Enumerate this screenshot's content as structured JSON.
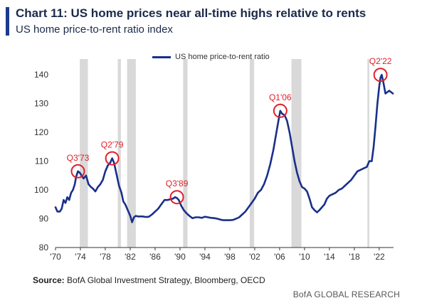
{
  "header": {
    "title": "Chart 11: US home prices near all-time highs relative to rents",
    "subtitle": "US home price-to-rent ratio index"
  },
  "footer": {
    "source_label": "Source:",
    "source_text": "BofA Global Investment Strategy, Bloomberg, OECD",
    "credit": "BofA GLOBAL RESEARCH"
  },
  "colors": {
    "line": "#1a2f8a",
    "recession": "#d9d9d9",
    "marker": "#e0202a",
    "axis": "#333333"
  },
  "chart_data": {
    "type": "line",
    "title": "Chart 11: US home prices near all-time highs relative to rents",
    "subtitle": "US home price-to-rent ratio index",
    "xlabel": "",
    "ylabel": "",
    "xlim": [
      1970,
      2024.3
    ],
    "ylim": [
      80,
      145
    ],
    "yticks": [
      80,
      90,
      100,
      110,
      120,
      130,
      140
    ],
    "xtick_values": [
      1970,
      1974,
      1978,
      1982,
      1986,
      1990,
      1994,
      1998,
      2002,
      2006,
      2010,
      2014,
      2018,
      2022
    ],
    "xtick_labels": [
      "'70",
      "'74",
      "'78",
      "'82",
      "'86",
      "'90",
      "'94",
      "'98",
      "'02",
      "'06",
      "'10",
      "'14",
      "'18",
      "'22"
    ],
    "grid": false,
    "legend": "top-center",
    "series": [
      {
        "name": "US home price-to-rent ratio",
        "x": [
          1970.0,
          1970.3,
          1970.7,
          1971.0,
          1971.3,
          1971.6,
          1971.9,
          1972.2,
          1972.5,
          1972.8,
          1973.1,
          1973.3,
          1973.6,
          1973.9,
          1974.2,
          1974.5,
          1974.9,
          1975.3,
          1975.7,
          1976.0,
          1976.4,
          1976.8,
          1977.2,
          1977.6,
          1978.0,
          1978.4,
          1978.8,
          1979.1,
          1979.4,
          1979.8,
          1980.2,
          1980.6,
          1980.9,
          1981.2,
          1981.6,
          1982.0,
          1982.3,
          1982.6,
          1982.9,
          1983.2,
          1983.6,
          1984.0,
          1984.5,
          1985.0,
          1985.5,
          1986.0,
          1986.5,
          1987.0,
          1987.5,
          1988.0,
          1988.5,
          1988.9,
          1989.2,
          1989.5,
          1989.8,
          1990.2,
          1990.6,
          1991.0,
          1991.5,
          1992.0,
          1992.5,
          1993.0,
          1993.5,
          1994.0,
          1994.5,
          1995.0,
          1995.5,
          1996.0,
          1996.5,
          1997.0,
          1997.5,
          1998.0,
          1998.5,
          1999.0,
          1999.5,
          2000.0,
          2000.5,
          2001.0,
          2001.5,
          2002.0,
          2002.5,
          2003.0,
          2003.5,
          2004.0,
          2004.5,
          2005.0,
          2005.4,
          2005.8,
          2006.1,
          2006.4,
          2006.8,
          2007.2,
          2007.6,
          2008.0,
          2008.4,
          2008.8,
          2009.2,
          2009.6,
          2010.0,
          2010.4,
          2010.8,
          2011.2,
          2011.6,
          2012.0,
          2012.4,
          2012.8,
          2013.2,
          2013.6,
          2014.0,
          2014.5,
          2015.0,
          2015.5,
          2016.0,
          2016.5,
          2017.0,
          2017.5,
          2018.0,
          2018.5,
          2019.0,
          2019.5,
          2020.0,
          2020.4,
          2020.8,
          2021.1,
          2021.4,
          2021.7,
          2022.0,
          2022.2,
          2022.4,
          2022.7,
          2023.0,
          2023.3,
          2023.6,
          2023.9,
          2024.2
        ],
        "values": [
          94,
          92.5,
          92.5,
          93.5,
          96.5,
          95.5,
          97.5,
          96.5,
          99,
          100,
          102,
          104.5,
          106.5,
          106,
          105,
          104,
          105,
          102,
          101,
          100.5,
          99.5,
          101,
          102,
          103.5,
          106.5,
          108.5,
          109.5,
          111,
          109.5,
          105.5,
          101.5,
          99,
          96,
          95,
          93,
          91,
          88.8,
          90.5,
          91,
          90.8,
          90.8,
          90.8,
          90.6,
          90.7,
          91.5,
          92.5,
          93.5,
          95,
          96.5,
          96.5,
          96.8,
          97,
          97.5,
          97.2,
          96.5,
          94.5,
          93,
          92,
          91,
          90.2,
          90.5,
          90.5,
          90.3,
          90.7,
          90.5,
          90.3,
          90.2,
          90,
          89.7,
          89.5,
          89.5,
          89.5,
          89.6,
          90,
          90.5,
          91.5,
          92.5,
          94,
          95.5,
          97,
          99,
          100,
          102,
          105,
          109,
          114,
          119,
          124,
          127.5,
          126.5,
          126,
          124,
          120,
          115,
          110,
          106,
          103,
          101,
          100.5,
          99.5,
          97,
          94,
          93,
          92.2,
          93,
          94,
          95,
          97,
          98,
          98.5,
          99,
          100,
          100.5,
          101.5,
          102.5,
          103.5,
          105,
          106.5,
          107,
          107.5,
          108,
          110,
          110,
          115,
          122,
          130,
          136,
          139,
          140,
          137,
          133.5,
          134,
          134.5,
          134,
          133.5
        ]
      }
    ],
    "recession_bands": [
      [
        1973.9,
        1975.2
      ],
      [
        1980.0,
        1980.5
      ],
      [
        1981.5,
        1982.9
      ],
      [
        1990.5,
        1991.2
      ],
      [
        2001.2,
        2001.9
      ],
      [
        2007.9,
        2009.5
      ],
      [
        2020.1,
        2020.4
      ]
    ],
    "annotations": [
      {
        "label": "Q3'73",
        "x": 1973.6,
        "y": 106.5
      },
      {
        "label": "Q2'79",
        "x": 1979.1,
        "y": 111
      },
      {
        "label": "Q3'89",
        "x": 1989.5,
        "y": 97.5
      },
      {
        "label": "Q1'06",
        "x": 2006.1,
        "y": 127.5
      },
      {
        "label": "Q2'22",
        "x": 2022.2,
        "y": 140
      }
    ]
  }
}
